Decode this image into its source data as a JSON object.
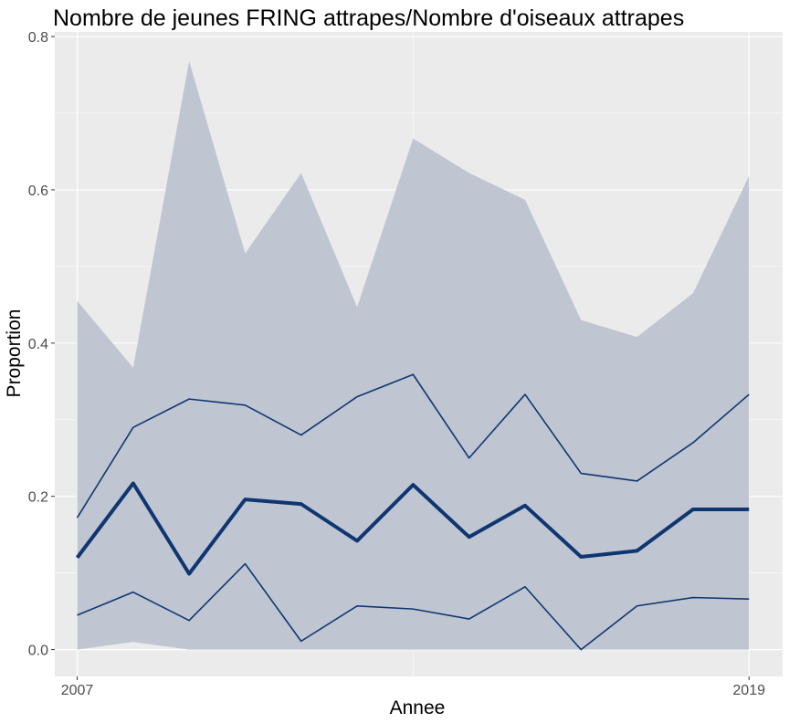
{
  "chart_data": {
    "type": "line",
    "title": "Nombre de jeunes FRING attrapes/Nombre d'oiseaux attrapes",
    "xlabel": "Annee",
    "ylabel": "Proportion",
    "x": [
      2007,
      2008,
      2009,
      2010,
      2011,
      2012,
      2013,
      2014,
      2015,
      2016,
      2017,
      2018,
      2019
    ],
    "x_ticks": [
      2007,
      2019
    ],
    "y_ticks": [
      0.0,
      0.2,
      0.4,
      0.6,
      0.8
    ],
    "y_tick_labels": [
      "0.0",
      "0.2",
      "0.4",
      "0.6",
      "0.8"
    ],
    "xlim": [
      2006.6,
      2019.6
    ],
    "ylim": [
      -0.035,
      0.806
    ],
    "grid": true,
    "colors": {
      "panel": "#ebebeb",
      "grid": "#ffffff",
      "ribbon": "#bfc6d1",
      "line": "#0f3672"
    },
    "band": {
      "lower": [
        0.0,
        0.01,
        0.0,
        0.0,
        0.0,
        0.0,
        0.0,
        0.0,
        0.0,
        0.0,
        0.0,
        0.0,
        0.0
      ],
      "upper": [
        0.455,
        0.368,
        0.768,
        0.517,
        0.622,
        0.447,
        0.667,
        0.622,
        0.587,
        0.43,
        0.408,
        0.465,
        0.618
      ]
    },
    "series": [
      {
        "role": "upper-quantile",
        "values": [
          0.172,
          0.29,
          0.327,
          0.319,
          0.28,
          0.33,
          0.359,
          0.25,
          0.333,
          0.23,
          0.22,
          0.27,
          0.333
        ]
      },
      {
        "role": "central",
        "values": [
          0.12,
          0.217,
          0.099,
          0.196,
          0.19,
          0.142,
          0.215,
          0.147,
          0.188,
          0.121,
          0.129,
          0.183,
          0.183
        ]
      },
      {
        "role": "lower-quantile",
        "values": [
          0.045,
          0.075,
          0.038,
          0.112,
          0.011,
          0.057,
          0.053,
          0.04,
          0.082,
          0.0,
          0.057,
          0.068,
          0.066
        ]
      }
    ]
  }
}
